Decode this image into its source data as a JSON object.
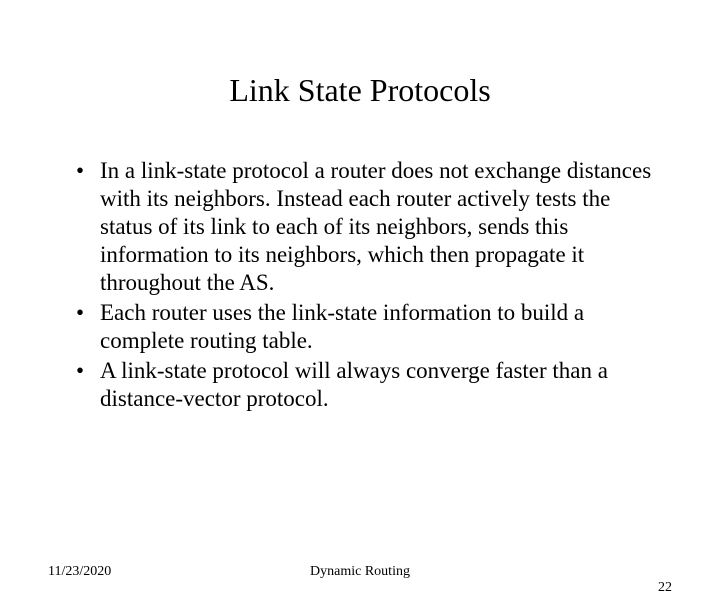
{
  "title": "Link State Protocols",
  "title_fontsize": 32,
  "body_fontsize": 23,
  "footer_fontsize": 14,
  "text_color": "#000000",
  "background_color": "#ffffff",
  "font_family": "Times New Roman",
  "bullets": [
    "In a link-state protocol a router does not exchange distances with its neighbors. Instead each router actively tests the status of its link to each of its neighbors, sends this information to its neighbors, which then propagate it throughout the AS.",
    "Each router uses the link-state information to build a complete routing table.",
    "A link-state protocol will always converge faster than a distance-vector protocol."
  ],
  "footer": {
    "date": "11/23/2020",
    "title": "Dynamic Routing",
    "page": "22"
  }
}
